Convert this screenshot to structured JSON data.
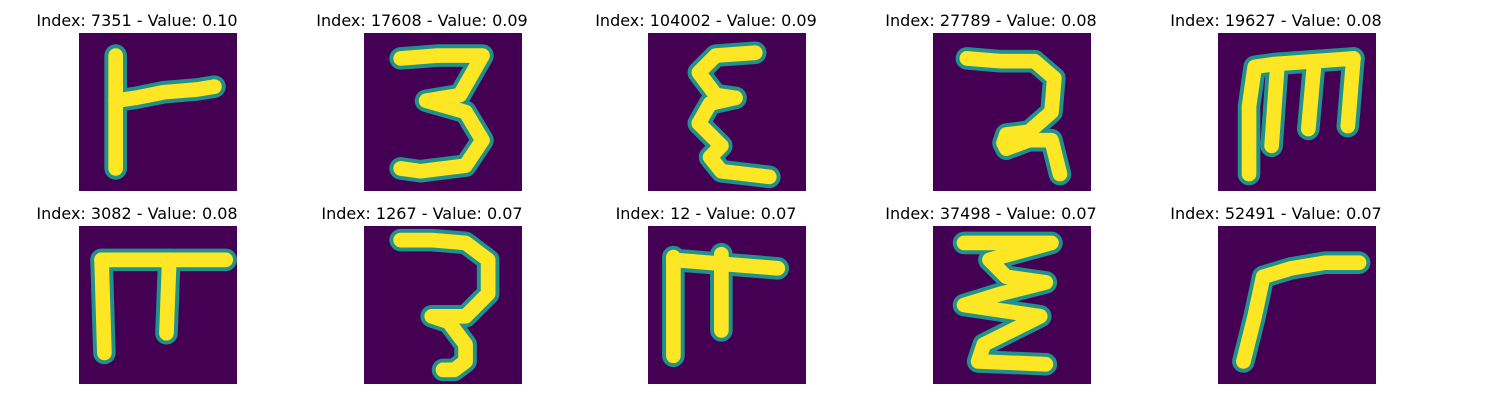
{
  "chart_data": {
    "type": "image-grid",
    "colormap": {
      "background": "#440154",
      "stroke": "#fde725",
      "edge": "#21918c"
    },
    "panels": [
      {
        "index": 7351,
        "value": 0.1,
        "title": "Index: 7351 - Value: 0.10",
        "glyph": "r-short"
      },
      {
        "index": 17608,
        "value": 0.09,
        "title": "Index: 17608 - Value: 0.09",
        "glyph": "three-bold"
      },
      {
        "index": 104002,
        "value": 0.09,
        "title": "Index: 104002 - Value: 0.09",
        "glyph": "epsilon"
      },
      {
        "index": 27789,
        "value": 0.08,
        "title": "Index: 27789 - Value: 0.08",
        "glyph": "hook-2"
      },
      {
        "index": 19627,
        "value": 0.08,
        "title": "Index: 19627 - Value: 0.08",
        "glyph": "m-like"
      },
      {
        "index": 3082,
        "value": 0.08,
        "title": "Index: 3082 - Value: 0.08",
        "glyph": "pi-like"
      },
      {
        "index": 1267,
        "value": 0.07,
        "title": "Index: 1267 - Value: 0.07",
        "glyph": "three-thin"
      },
      {
        "index": 12,
        "value": 0.07,
        "title": "Index: 12 - Value: 0.07",
        "glyph": "pi-long"
      },
      {
        "index": 37498,
        "value": 0.07,
        "title": "Index: 37498 - Value: 0.07",
        "glyph": "zigzag"
      },
      {
        "index": 52491,
        "value": 0.07,
        "title": "Index: 52491 - Value: 0.07",
        "glyph": "gamma"
      }
    ]
  }
}
